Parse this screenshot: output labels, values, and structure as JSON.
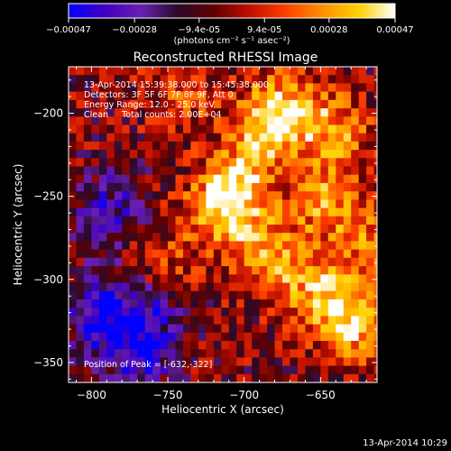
{
  "colorbar": {
    "ticks": [
      "-0.00047",
      "-0.00028",
      "-9.4e-05",
      "9.4e-05",
      "0.00028",
      "0.00047"
    ],
    "unit_label": "(photons cm⁻² s⁻¹ asec⁻²)",
    "range": [
      -0.00047,
      0.00047
    ],
    "colormap": [
      "#0000ff",
      "#4000c0",
      "#6a1fb0",
      "#2a0a2a",
      "#600000",
      "#c01000",
      "#ff4000",
      "#ff9000",
      "#ffd000",
      "#ffffff"
    ]
  },
  "footer": {
    "timestamp": "13-Apr-2014 10:29"
  },
  "chart_data": {
    "type": "heatmap",
    "title": "Reconstructed RHESSI Image",
    "xlabel": "Heliocentric X (arcsec)",
    "ylabel": "Heliocentric Y (arcsec)",
    "xlim": [
      -815,
      -613
    ],
    "ylim": [
      -362,
      -172
    ],
    "x_ticks": [
      -800,
      -750,
      -700,
      -650
    ],
    "y_ticks": [
      -200,
      -250,
      -300,
      -350
    ],
    "x_tick_labels": [
      "−800",
      "−750",
      "−700",
      "−650"
    ],
    "y_tick_labels": [
      "−200",
      "−250",
      "−300",
      "−350"
    ],
    "annotations": [
      "13-Apr-2014 15:39:38.000 to 15:45:38.000",
      "Detectors: 3F 5F 6F 7F 8F 9F, Att 0",
      "Energy Range: 12.0 - 25.0 keV",
      "Clean     Total counts: 2.00E+04"
    ],
    "peak_label": "Position of Peak = [-632,-322]",
    "peak": [
      -632,
      -322
    ],
    "bright_regions": [
      {
        "x": -720,
        "y": -255,
        "intensity": 0.75
      },
      {
        "x": -705,
        "y": -240,
        "intensity": 0.7
      },
      {
        "x": -690,
        "y": -205,
        "intensity": 0.8
      },
      {
        "x": -670,
        "y": -195,
        "intensity": 0.7
      },
      {
        "x": -650,
        "y": -250,
        "intensity": 0.65
      },
      {
        "x": -690,
        "y": -280,
        "intensity": 0.7
      },
      {
        "x": -660,
        "y": -300,
        "intensity": 0.65
      },
      {
        "x": -632,
        "y": -322,
        "intensity": 1.0
      },
      {
        "x": -640,
        "y": -210,
        "intensity": 0.6
      },
      {
        "x": -755,
        "y": -290,
        "intensity": 0.45
      },
      {
        "x": -745,
        "y": -185,
        "intensity": 0.45
      },
      {
        "x": -620,
        "y": -275,
        "intensity": 0.55
      }
    ],
    "dim_regions": [
      {
        "x": -795,
        "y": -320,
        "intensity": -0.85
      },
      {
        "x": -770,
        "y": -340,
        "intensity": -0.7
      },
      {
        "x": -790,
        "y": -255,
        "intensity": -0.55
      },
      {
        "x": -760,
        "y": -310,
        "intensity": -0.45
      }
    ]
  }
}
